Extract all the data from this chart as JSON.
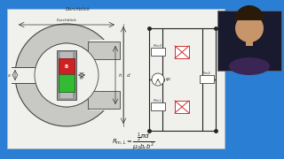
{
  "bg_color": "#2a7fd4",
  "slide_bg": "#f0f0ec",
  "ring_gray": "#c8c8c4",
  "ring_edge": "#444444",
  "core_dark": "#888888",
  "magnet_red": "#cc2222",
  "magnet_green": "#33bb33",
  "title": "Durchblick",
  "circuit_color": "#222222",
  "resistor_color": "#444444",
  "x_color": "#cc3333",
  "formula": "$R_{m,L} = \\frac{\\frac{1}{2}\\pi d}{\\mu_0 b_r b^2}$",
  "person_bg": "#1a1a2e",
  "person_skin": "#c8956a",
  "person_hair": "#2a1a0a",
  "person_shirt": "#3a2555"
}
